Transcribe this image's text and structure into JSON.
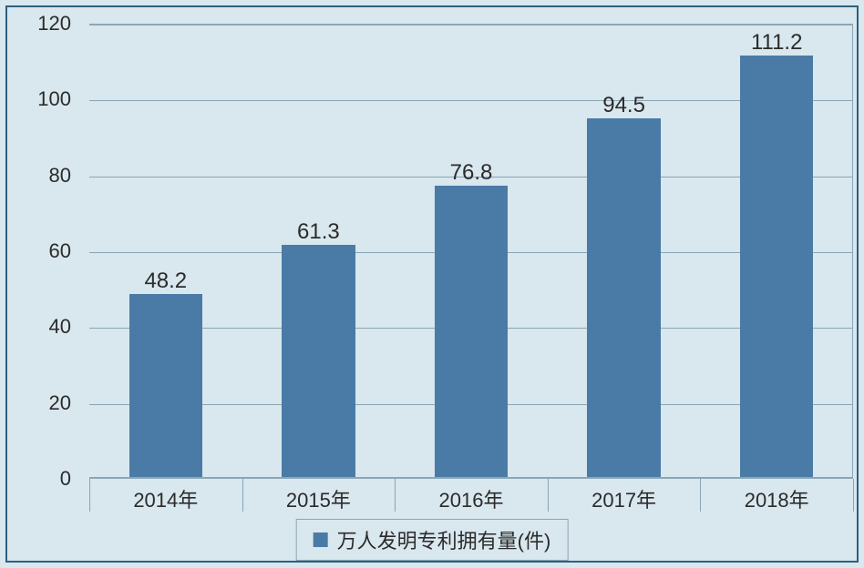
{
  "chart": {
    "type": "bar",
    "background_color": "#d9e7ee",
    "frame_border_color": "#2d5f7d",
    "plot_border_color": "#8aa6b5",
    "grid_color": "#8aa6b5",
    "axis_line_color": "#5a7f93",
    "label_color": "#2b2b2b",
    "label_fontsize": 22,
    "value_fontsize": 24,
    "ylim": [
      0,
      120
    ],
    "ytick_step": 20,
    "y_ticks": [
      "0",
      "20",
      "40",
      "60",
      "80",
      "100",
      "120"
    ],
    "categories": [
      "2014年",
      "2015年",
      "2016年",
      "2017年",
      "2018年"
    ],
    "values": [
      48.2,
      61.3,
      76.8,
      94.5,
      111.2
    ],
    "value_labels": [
      "48.2",
      "61.3",
      "76.8",
      "94.5",
      "111.2"
    ],
    "bar_color": "#4a7ba6",
    "bar_width": 0.48,
    "legend": {
      "swatch_color": "#4a7ba6",
      "label": "万人发明专利拥有量(件)",
      "border_color": "#8aa6b5",
      "background": "#d9e7ee"
    }
  }
}
